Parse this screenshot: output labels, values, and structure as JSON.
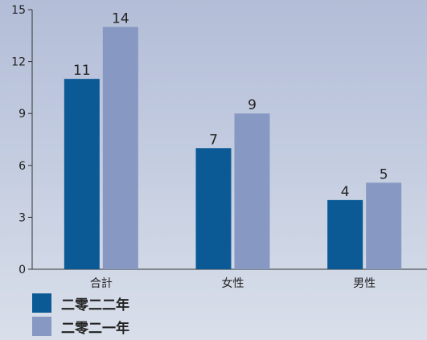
{
  "chart_data": {
    "type": "bar",
    "categories": [
      "合計",
      "女性",
      "男性"
    ],
    "series": [
      {
        "name": "二零二二年",
        "values": [
          11,
          7,
          4
        ],
        "color": "#0b5a96"
      },
      {
        "name": "二零二一年",
        "values": [
          14,
          9,
          5
        ],
        "color": "#8799c3"
      }
    ],
    "ylim": [
      0,
      15
    ],
    "yticks": [
      0,
      3,
      6,
      9,
      12,
      15
    ],
    "grid": false,
    "legend_position": "bottom-left"
  }
}
